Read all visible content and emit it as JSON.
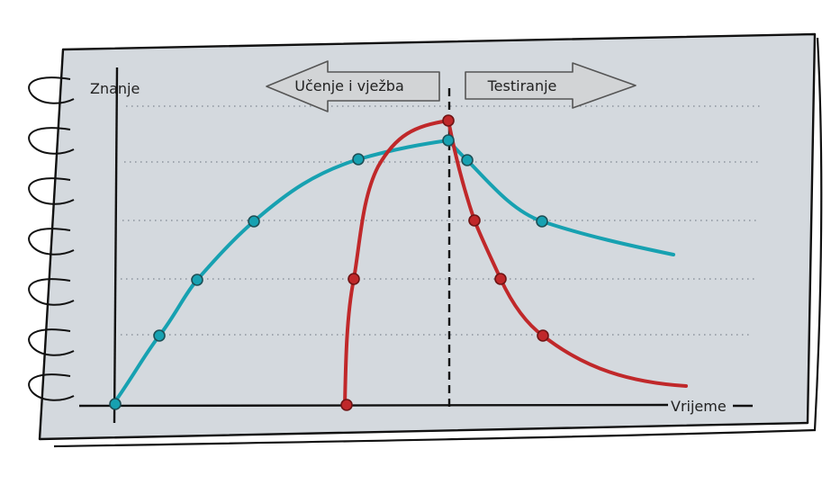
{
  "labels": {
    "y_axis": "Znanje",
    "x_axis": "Vrijeme",
    "arrow_left": "Učenje i vježba",
    "arrow_right": "Testiranje"
  },
  "colors": {
    "paper": "#d4d9de",
    "teal": "#17a1b1",
    "red": "#c0282a",
    "ink": "#111111",
    "arrow_fill": "#d2d4d6"
  },
  "icons": [
    "spiral-binding-icon",
    "arrow-left-icon",
    "arrow-right-icon"
  ]
}
